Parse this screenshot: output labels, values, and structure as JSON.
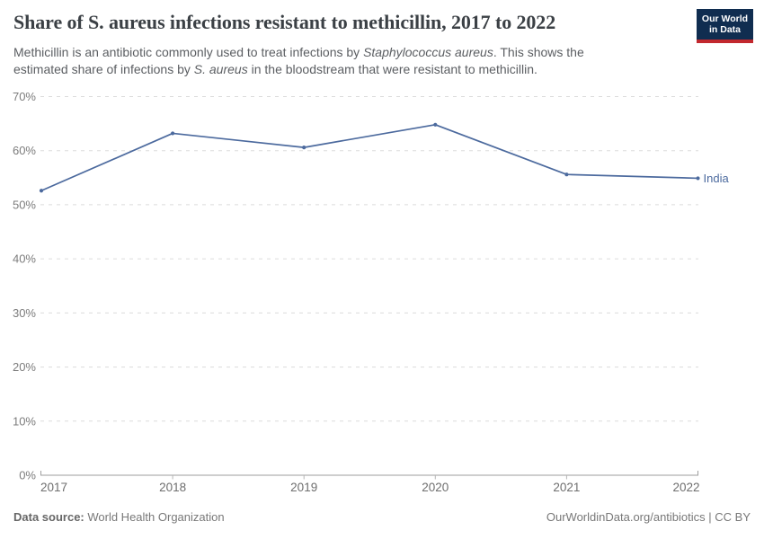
{
  "header": {
    "title": "Share of S. aureus infections resistant to methicillin, 2017 to 2022",
    "subtitle_segments": [
      {
        "text": "Methicillin is an antibiotic commonly used to treat infections by ",
        "italic": false
      },
      {
        "text": "Staphylococcus aureus",
        "italic": true
      },
      {
        "text": ". This shows the estimated share of infections by ",
        "italic": false
      },
      {
        "text": "S. aureus",
        "italic": true
      },
      {
        "text": " in the bloodstream that were resistant to methicillin.",
        "italic": false
      }
    ],
    "logo": {
      "line1": "Our World",
      "line2": "in Data",
      "bg_color": "#102d50",
      "accent_color": "#c2282e"
    }
  },
  "chart_data": {
    "type": "line",
    "title": "Share of S. aureus infections resistant to methicillin, 2017 to 2022",
    "x": [
      2017,
      2018,
      2019,
      2020,
      2021,
      2022
    ],
    "series": [
      {
        "name": "India",
        "values": [
          52.6,
          63.2,
          60.6,
          64.8,
          55.6,
          54.9
        ],
        "color": "#4C6A9E"
      }
    ],
    "ylabel": "",
    "xlabel": "",
    "ylim": [
      0,
      70
    ],
    "ytick_interval": 10,
    "ytick_suffix": "%",
    "grid": "horizontal-dashed",
    "legend_position": "end-of-line-label",
    "colors": {
      "line": "#4C6A9E",
      "gridline": "#dcdcdc",
      "axis_line": "#9e9e9e",
      "tick": "#b5b5b5",
      "y_tick_label": "#7c7c7c",
      "x_tick_label": "#6e6e6e"
    }
  },
  "footer": {
    "source_label": "Data source:",
    "source_value": " World Health Organization",
    "credit": "OurWorldinData.org/antibiotics | CC BY"
  }
}
